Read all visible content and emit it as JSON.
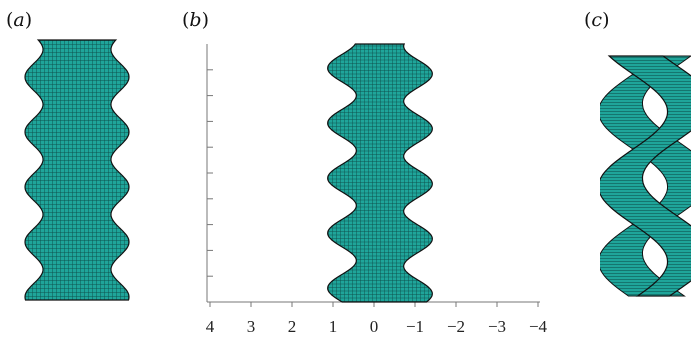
{
  "panels": {
    "a": {
      "label_open": "(",
      "label_letter": "a",
      "label_close": ")"
    },
    "b": {
      "label_open": "(",
      "label_letter": "b",
      "label_close": ")"
    },
    "c": {
      "label_open": "(",
      "label_letter": "c",
      "label_close": ")"
    }
  },
  "axis_b": {
    "x_ticks": [
      4,
      3,
      2,
      1,
      0,
      -1,
      -2,
      -3,
      -4
    ],
    "x_tick_labels": [
      "4",
      "3",
      "2",
      "1",
      "0",
      "−1",
      "−2",
      "−3",
      "−4"
    ],
    "y_tick_count": 10,
    "reversed": true
  },
  "colors": {
    "surface": "#1fa59a",
    "surface_dark": "#0f5e58",
    "mesh": "#083b37",
    "outline": "#111111",
    "axis": "#777777"
  }
}
